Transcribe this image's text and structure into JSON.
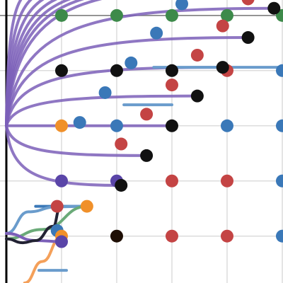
{
  "chart_data": {
    "type": "scatter",
    "xlim": [
      -0.115,
      5.013
    ],
    "ylim": [
      -2.85,
      2.28
    ],
    "xticks": [
      1,
      2,
      3,
      4,
      5
    ],
    "yticks": [
      -2,
      -1,
      0,
      1,
      2
    ],
    "grid": true,
    "vline": 0,
    "hline": 2,
    "fan_color": "#7b5fb8",
    "fan": [
      {
        "x": [
          0,
          4.85
        ],
        "values": [
          0,
          2.13
        ]
      },
      {
        "x": [
          0,
          4.38
        ],
        "values": [
          0,
          1.6
        ]
      },
      {
        "x": [
          0,
          3.92
        ],
        "values": [
          0,
          1.06
        ]
      },
      {
        "x": [
          0,
          3.46
        ],
        "values": [
          0,
          0.54
        ]
      },
      {
        "x": [
          0,
          3
        ],
        "values": [
          0,
          0
        ]
      },
      {
        "x": [
          0,
          2.54
        ],
        "values": [
          0,
          -0.54
        ]
      },
      {
        "x": [
          0,
          2.08
        ],
        "values": [
          0,
          -1.08
        ]
      },
      {
        "x": [
          0,
          0.65
        ],
        "values": [
          0,
          2.5
        ]
      },
      {
        "x": [
          0,
          1.1
        ],
        "values": [
          0,
          2.5
        ]
      },
      {
        "x": [
          0,
          1.62
        ],
        "values": [
          0,
          2.5
        ]
      },
      {
        "x": [
          0,
          2.19
        ],
        "values": [
          0,
          2.5
        ]
      },
      {
        "x": [
          0,
          2.77
        ],
        "values": [
          0,
          2.5
        ]
      },
      {
        "x": [
          0,
          3.35
        ],
        "values": [
          0,
          2.5
        ]
      },
      {
        "x": [
          0,
          4.12
        ],
        "values": [
          0,
          2.5
        ]
      }
    ],
    "lines": [
      {
        "color": "#6a9ccc",
        "x": [
          2.13,
          3
        ],
        "values": [
          0.38,
          0.38
        ]
      },
      {
        "color": "#6a9ccc",
        "x": [
          2.67,
          5
        ],
        "values": [
          1.06,
          1.06
        ]
      },
      {
        "color": "#6a9ccc",
        "x": [
          0.59,
          1.09
        ],
        "values": [
          -2.62,
          -2.62
        ]
      },
      {
        "color": "#3a78b8",
        "x": [
          0.53,
          1.42
        ],
        "values": [
          -1.46,
          -1.46
        ]
      },
      {
        "color": "#6a9ccc",
        "x": [
          0,
          0.4,
          0.91,
          1.42
        ],
        "values": [
          -1.95,
          -1.56,
          -1.47,
          -1.46
        ]
      },
      {
        "color": "#6aaa78",
        "x": [
          0,
          0.65,
          1.46
        ],
        "values": [
          -2.05,
          -1.88,
          -1.46
        ]
      },
      {
        "color": "#f4a05a",
        "x": [
          0.33,
          0.65,
          1
        ],
        "values": [
          -2.85,
          -2.46,
          -2.01
        ]
      },
      {
        "color": "#7b5fb8",
        "x": [
          0,
          0.53,
          1
        ],
        "values": [
          -1.95,
          -2.08,
          -2.1
        ]
      },
      {
        "color": "#222233",
        "x": [
          0,
          0.3,
          0.53,
          0.85,
          0.97
        ],
        "values": [
          -2.05,
          -2.12,
          -2.08,
          -1.82,
          -1.5
        ]
      }
    ],
    "series": [
      {
        "color": "#3d8a4a",
        "x": [
          1,
          2,
          3,
          4,
          5
        ],
        "values": [
          2,
          2,
          2,
          2,
          2
        ]
      },
      {
        "color": "#c44444",
        "x": [
          4,
          3,
          3.46,
          3.92,
          4.38,
          2.54,
          2.08,
          3,
          4,
          3,
          4,
          0.92
        ],
        "values": [
          1,
          0.74,
          1.28,
          1.81,
          2.3,
          0.21,
          -0.33,
          -1,
          -1,
          -2,
          -2,
          -1.46
        ]
      },
      {
        "color": "#3a78b8",
        "x": [
          5,
          2.26,
          1.79,
          1.33,
          2,
          4,
          5,
          5,
          5,
          2.72,
          3.18,
          0.92
        ],
        "values": [
          1,
          1.14,
          0.6,
          0.06,
          0,
          0,
          0,
          -1,
          -2,
          1.68,
          2.21,
          -1.9
        ]
      },
      {
        "color": "#f0902a",
        "x": [
          1,
          1.46,
          1
        ],
        "values": [
          0,
          -1.46,
          -2
        ]
      },
      {
        "color": "#5a45a8",
        "x": [
          1,
          2,
          1
        ],
        "values": [
          -1,
          -1,
          -2.1
        ]
      },
      {
        "color": "#1e0e04",
        "x": [
          2
        ],
        "values": [
          -2
        ]
      },
      {
        "color": "#111111",
        "x": [
          1,
          2,
          3,
          3.92,
          3,
          2.08,
          4.38,
          4.85,
          3.46,
          2.54
        ],
        "values": [
          1,
          1,
          1,
          1.06,
          0,
          -1.08,
          1.6,
          2.13,
          0.54,
          -0.54
        ]
      }
    ]
  }
}
